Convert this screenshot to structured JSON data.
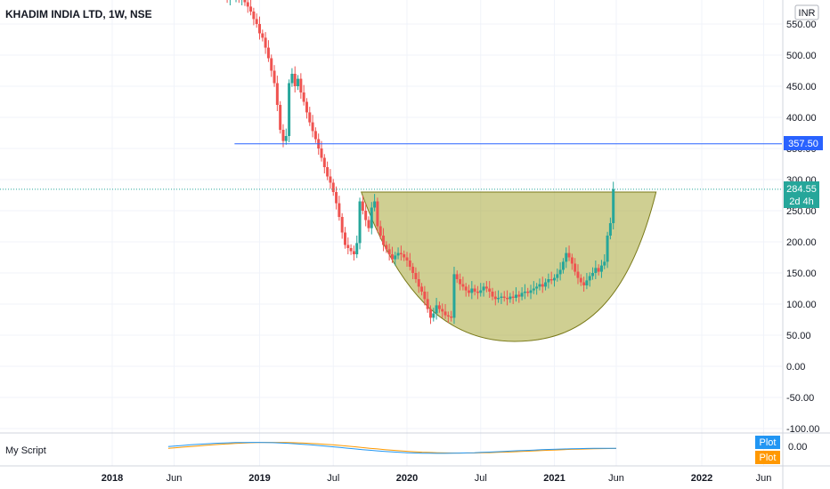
{
  "header": {
    "title": "KHADIM INDIA LTD, 1W, NSE"
  },
  "chart_data": {
    "type": "candlestick",
    "currency": "INR",
    "ylim": [
      -110,
      580
    ],
    "yticks": [
      "550.00",
      "500.00",
      "450.00",
      "400.00",
      "350.00",
      "300.00",
      "250.00",
      "200.00",
      "150.00",
      "100.00",
      "50.00",
      "0.00",
      "-50.00",
      "-100.00"
    ],
    "ytick_values": [
      550,
      500,
      450,
      400,
      350,
      300,
      250,
      200,
      150,
      100,
      50,
      0,
      -50,
      -100
    ],
    "xticks": [
      {
        "label": "2018",
        "x": 2018.0,
        "bold": true
      },
      {
        "label": "Jun",
        "x": 2018.42
      },
      {
        "label": "2019",
        "x": 2019.0,
        "bold": true
      },
      {
        "label": "Jul",
        "x": 2019.5
      },
      {
        "label": "2020",
        "x": 2020.0,
        "bold": true
      },
      {
        "label": "Jul",
        "x": 2020.5
      },
      {
        "label": "2021",
        "x": 2021.0,
        "bold": true
      },
      {
        "label": "Jun",
        "x": 2021.42
      },
      {
        "label": "2022",
        "x": 2022.0,
        "bold": true
      },
      {
        "label": "Jun",
        "x": 2022.42
      }
    ],
    "grid": true,
    "resistance_line": {
      "value": 357.5,
      "label": "357.50",
      "x_start": 2018.83
    },
    "last_price": {
      "value": 284.55,
      "label": "284.55",
      "countdown": "2d 4h"
    },
    "cup_pattern": {
      "rim_value": 280,
      "bottom_value": 40,
      "x_start": 2019.69,
      "x_bottom": 2020.73,
      "x_end": 2021.69
    },
    "series": [
      {
        "x": 2018.78,
        "v": 590
      },
      {
        "x": 2018.8,
        "v": 600
      },
      {
        "x": 2018.82,
        "v": 595
      },
      {
        "x": 2018.84,
        "v": 598
      },
      {
        "x": 2018.86,
        "v": 590
      },
      {
        "x": 2018.88,
        "v": 592
      },
      {
        "x": 2018.9,
        "v": 585
      },
      {
        "x": 2018.92,
        "v": 578
      },
      {
        "x": 2018.94,
        "v": 570
      },
      {
        "x": 2018.96,
        "v": 558
      },
      {
        "x": 2018.98,
        "v": 550
      },
      {
        "x": 2019.0,
        "v": 535
      },
      {
        "x": 2019.02,
        "v": 528
      },
      {
        "x": 2019.04,
        "v": 512
      },
      {
        "x": 2019.06,
        "v": 495
      },
      {
        "x": 2019.08,
        "v": 475
      },
      {
        "x": 2019.1,
        "v": 455
      },
      {
        "x": 2019.12,
        "v": 420
      },
      {
        "x": 2019.14,
        "v": 380
      },
      {
        "x": 2019.16,
        "v": 362
      },
      {
        "x": 2019.18,
        "v": 370
      },
      {
        "x": 2019.2,
        "v": 455
      },
      {
        "x": 2019.22,
        "v": 470
      },
      {
        "x": 2019.24,
        "v": 450
      },
      {
        "x": 2019.26,
        "v": 462
      },
      {
        "x": 2019.28,
        "v": 440
      },
      {
        "x": 2019.3,
        "v": 425
      },
      {
        "x": 2019.32,
        "v": 408
      },
      {
        "x": 2019.34,
        "v": 392
      },
      {
        "x": 2019.36,
        "v": 378
      },
      {
        "x": 2019.38,
        "v": 365
      },
      {
        "x": 2019.4,
        "v": 350
      },
      {
        "x": 2019.42,
        "v": 335
      },
      {
        "x": 2019.44,
        "v": 320
      },
      {
        "x": 2019.46,
        "v": 305
      },
      {
        "x": 2019.48,
        "v": 295
      },
      {
        "x": 2019.5,
        "v": 280
      },
      {
        "x": 2019.52,
        "v": 262
      },
      {
        "x": 2019.54,
        "v": 240
      },
      {
        "x": 2019.56,
        "v": 215
      },
      {
        "x": 2019.58,
        "v": 195
      },
      {
        "x": 2019.6,
        "v": 190
      },
      {
        "x": 2019.62,
        "v": 185
      },
      {
        "x": 2019.64,
        "v": 180
      },
      {
        "x": 2019.66,
        "v": 198
      },
      {
        "x": 2019.68,
        "v": 265
      },
      {
        "x": 2019.7,
        "v": 250
      },
      {
        "x": 2019.72,
        "v": 235
      },
      {
        "x": 2019.74,
        "v": 222
      },
      {
        "x": 2019.76,
        "v": 255
      },
      {
        "x": 2019.78,
        "v": 265
      },
      {
        "x": 2019.8,
        "v": 225
      },
      {
        "x": 2019.82,
        "v": 210
      },
      {
        "x": 2019.84,
        "v": 195
      },
      {
        "x": 2019.86,
        "v": 188
      },
      {
        "x": 2019.88,
        "v": 180
      },
      {
        "x": 2019.9,
        "v": 172
      },
      {
        "x": 2019.92,
        "v": 178
      },
      {
        "x": 2019.94,
        "v": 182
      },
      {
        "x": 2019.96,
        "v": 180
      },
      {
        "x": 2019.98,
        "v": 175
      },
      {
        "x": 2020.0,
        "v": 170
      },
      {
        "x": 2020.02,
        "v": 160
      },
      {
        "x": 2020.04,
        "v": 150
      },
      {
        "x": 2020.06,
        "v": 140
      },
      {
        "x": 2020.08,
        "v": 128
      },
      {
        "x": 2020.1,
        "v": 120
      },
      {
        "x": 2020.12,
        "v": 108
      },
      {
        "x": 2020.14,
        "v": 92
      },
      {
        "x": 2020.16,
        "v": 78
      },
      {
        "x": 2020.18,
        "v": 85
      },
      {
        "x": 2020.2,
        "v": 98
      },
      {
        "x": 2020.22,
        "v": 92
      },
      {
        "x": 2020.24,
        "v": 88
      },
      {
        "x": 2020.26,
        "v": 82
      },
      {
        "x": 2020.28,
        "v": 80
      },
      {
        "x": 2020.3,
        "v": 78
      },
      {
        "x": 2020.32,
        "v": 148
      },
      {
        "x": 2020.34,
        "v": 140
      },
      {
        "x": 2020.36,
        "v": 132
      },
      {
        "x": 2020.38,
        "v": 128
      },
      {
        "x": 2020.4,
        "v": 122
      },
      {
        "x": 2020.42,
        "v": 118
      },
      {
        "x": 2020.44,
        "v": 125
      },
      {
        "x": 2020.46,
        "v": 120
      },
      {
        "x": 2020.48,
        "v": 118
      },
      {
        "x": 2020.5,
        "v": 122
      },
      {
        "x": 2020.52,
        "v": 128
      },
      {
        "x": 2020.54,
        "v": 125
      },
      {
        "x": 2020.56,
        "v": 120
      },
      {
        "x": 2020.58,
        "v": 112
      },
      {
        "x": 2020.6,
        "v": 108
      },
      {
        "x": 2020.62,
        "v": 110
      },
      {
        "x": 2020.64,
        "v": 112
      },
      {
        "x": 2020.66,
        "v": 110
      },
      {
        "x": 2020.68,
        "v": 108
      },
      {
        "x": 2020.7,
        "v": 112
      },
      {
        "x": 2020.72,
        "v": 110
      },
      {
        "x": 2020.74,
        "v": 115
      },
      {
        "x": 2020.76,
        "v": 112
      },
      {
        "x": 2020.78,
        "v": 118
      },
      {
        "x": 2020.8,
        "v": 120
      },
      {
        "x": 2020.82,
        "v": 118
      },
      {
        "x": 2020.84,
        "v": 122
      },
      {
        "x": 2020.86,
        "v": 125
      },
      {
        "x": 2020.88,
        "v": 128
      },
      {
        "x": 2020.9,
        "v": 132
      },
      {
        "x": 2020.92,
        "v": 128
      },
      {
        "x": 2020.94,
        "v": 135
      },
      {
        "x": 2020.96,
        "v": 140
      },
      {
        "x": 2020.98,
        "v": 138
      },
      {
        "x": 2021.0,
        "v": 142
      },
      {
        "x": 2021.02,
        "v": 148
      },
      {
        "x": 2021.04,
        "v": 155
      },
      {
        "x": 2021.06,
        "v": 168
      },
      {
        "x": 2021.08,
        "v": 182
      },
      {
        "x": 2021.1,
        "v": 175
      },
      {
        "x": 2021.12,
        "v": 165
      },
      {
        "x": 2021.14,
        "v": 152
      },
      {
        "x": 2021.16,
        "v": 142
      },
      {
        "x": 2021.18,
        "v": 135
      },
      {
        "x": 2021.2,
        "v": 130
      },
      {
        "x": 2021.22,
        "v": 138
      },
      {
        "x": 2021.24,
        "v": 145
      },
      {
        "x": 2021.26,
        "v": 150
      },
      {
        "x": 2021.28,
        "v": 158
      },
      {
        "x": 2021.3,
        "v": 152
      },
      {
        "x": 2021.32,
        "v": 162
      },
      {
        "x": 2021.34,
        "v": 168
      },
      {
        "x": 2021.36,
        "v": 210
      },
      {
        "x": 2021.38,
        "v": 230
      },
      {
        "x": 2021.4,
        "v": 284.55
      }
    ]
  },
  "oscillator": {
    "name": "My Script",
    "value_label": "0.00",
    "legend_blue": "Plot",
    "legend_orange": "Plot",
    "colors": {
      "blue": "#2196F3",
      "orange": "#FF9800"
    }
  },
  "colors": {
    "up": "#26a69a",
    "down": "#ef5350",
    "resistance": "#2962FF",
    "cup_fill": "#a8a838",
    "grid": "#f0f3fa",
    "axis": "#131722"
  }
}
